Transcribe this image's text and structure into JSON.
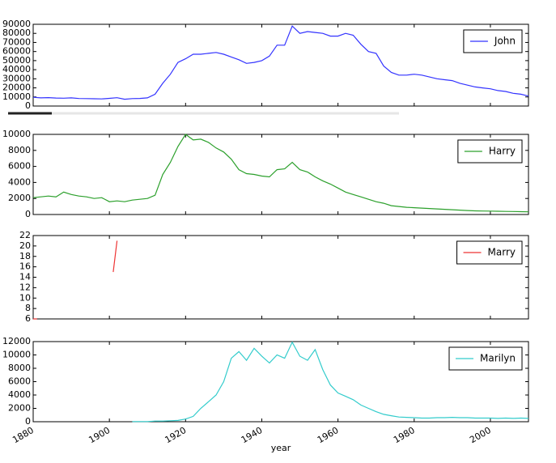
{
  "chart_data": [
    {
      "type": "line",
      "xlim": [
        1880,
        2010
      ],
      "ylim": [
        0,
        90000
      ],
      "yticks": [
        0,
        10000,
        20000,
        30000,
        40000,
        50000,
        60000,
        70000,
        80000,
        90000
      ],
      "legend": "upper right",
      "x": [
        1880,
        1882,
        1884,
        1886,
        1888,
        1890,
        1892,
        1894,
        1896,
        1898,
        1900,
        1902,
        1904,
        1906,
        1908,
        1910,
        1912,
        1914,
        1916,
        1918,
        1920,
        1922,
        1924,
        1926,
        1928,
        1930,
        1932,
        1934,
        1936,
        1938,
        1940,
        1942,
        1944,
        1946,
        1948,
        1950,
        1952,
        1954,
        1956,
        1958,
        1960,
        1962,
        1964,
        1966,
        1968,
        1970,
        1972,
        1974,
        1976,
        1978,
        1980,
        1982,
        1984,
        1986,
        1988,
        1990,
        1992,
        1994,
        1996,
        1998,
        2000,
        2002,
        2004,
        2006,
        2008,
        2010
      ],
      "series": [
        {
          "name": "John",
          "color": "#3333ff",
          "values": [
            9600,
            9000,
            9300,
            8800,
            8600,
            9000,
            8300,
            8200,
            8000,
            7800,
            8500,
            9200,
            7500,
            8200,
            8400,
            9000,
            13000,
            25000,
            35000,
            48000,
            52000,
            57000,
            57000,
            58000,
            59000,
            57000,
            54000,
            51000,
            47000,
            48000,
            50000,
            55000,
            67000,
            67000,
            88000,
            80000,
            82000,
            81000,
            80000,
            77000,
            77000,
            80000,
            78000,
            68000,
            60000,
            58000,
            44000,
            37000,
            34000,
            34000,
            35000,
            34000,
            32000,
            30000,
            29000,
            28000,
            25000,
            23000,
            21000,
            20000,
            19000,
            17000,
            16000,
            14000,
            13000,
            11000
          ]
        }
      ]
    },
    {
      "type": "line",
      "xlim": [
        1880,
        2010
      ],
      "ylim": [
        0,
        10000
      ],
      "yticks": [
        0,
        2000,
        4000,
        6000,
        8000,
        10000
      ],
      "legend": "upper right",
      "x": [
        1880,
        1882,
        1884,
        1886,
        1888,
        1890,
        1892,
        1894,
        1896,
        1898,
        1900,
        1902,
        1904,
        1906,
        1908,
        1910,
        1912,
        1914,
        1916,
        1918,
        1920,
        1922,
        1924,
        1926,
        1928,
        1930,
        1932,
        1934,
        1936,
        1938,
        1940,
        1942,
        1944,
        1946,
        1948,
        1950,
        1952,
        1954,
        1956,
        1958,
        1960,
        1962,
        1964,
        1966,
        1968,
        1970,
        1972,
        1974,
        1976,
        1978,
        1980,
        1982,
        1984,
        1986,
        1988,
        1990,
        1992,
        1994,
        1996,
        1998,
        2000,
        2002,
        2004,
        2006,
        2008,
        2010
      ],
      "series": [
        {
          "name": "Harry",
          "color": "#2ca02c",
          "values": [
            2100,
            2200,
            2300,
            2200,
            2800,
            2500,
            2300,
            2200,
            2000,
            2100,
            1600,
            1700,
            1600,
            1800,
            1900,
            2000,
            2400,
            5000,
            6500,
            8500,
            10000,
            9300,
            9400,
            9000,
            8300,
            7800,
            6900,
            5600,
            5100,
            5000,
            4800,
            4700,
            5600,
            5700,
            6500,
            5600,
            5300,
            4700,
            4200,
            3800,
            3300,
            2800,
            2500,
            2200,
            1900,
            1600,
            1400,
            1100,
            1000,
            900,
            850,
            800,
            750,
            700,
            650,
            600,
            550,
            500,
            450,
            430,
            420,
            400,
            380,
            370,
            350,
            330
          ]
        }
      ]
    },
    {
      "type": "line",
      "xlim": [
        1880,
        2010
      ],
      "ylim": [
        6,
        22
      ],
      "yticks": [
        6,
        8,
        10,
        12,
        14,
        16,
        18,
        20,
        22
      ],
      "legend": "upper right",
      "x": [
        1880,
        1881,
        1882,
        1901,
        1902
      ],
      "series": [
        {
          "name": "Marry",
          "color": "#ee3333",
          "values": [
            6,
            6,
            null,
            15,
            21
          ]
        }
      ]
    },
    {
      "type": "line",
      "xlim": [
        1880,
        2010
      ],
      "ylim": [
        0,
        12000
      ],
      "yticks": [
        0,
        2000,
        4000,
        6000,
        8000,
        10000,
        12000
      ],
      "legend": "upper right",
      "xticks": [
        1880,
        1900,
        1920,
        1940,
        1960,
        1980,
        2000
      ],
      "xlabel": "year",
      "x": [
        1880,
        1882,
        1884,
        1886,
        1888,
        1890,
        1892,
        1894,
        1896,
        1898,
        1900,
        1902,
        1904,
        1906,
        1908,
        1910,
        1912,
        1914,
        1916,
        1918,
        1920,
        1922,
        1924,
        1926,
        1928,
        1930,
        1932,
        1934,
        1936,
        1938,
        1940,
        1942,
        1944,
        1946,
        1948,
        1950,
        1952,
        1954,
        1956,
        1958,
        1960,
        1962,
        1964,
        1966,
        1968,
        1970,
        1972,
        1974,
        1976,
        1978,
        1980,
        1982,
        1984,
        1986,
        1988,
        1990,
        1992,
        1994,
        1996,
        1998,
        2000,
        2002,
        2004,
        2006,
        2008,
        2010
      ],
      "series": [
        {
          "name": "Marilyn",
          "color": "#33cccc",
          "values": [
            null,
            null,
            null,
            null,
            null,
            null,
            null,
            null,
            null,
            null,
            null,
            null,
            null,
            20,
            30,
            20,
            100,
            100,
            150,
            200,
            400,
            800,
            2000,
            3000,
            4000,
            6000,
            9500,
            10500,
            9200,
            11000,
            9800,
            8800,
            10000,
            9500,
            11900,
            9800,
            9200,
            10800,
            7800,
            5500,
            4300,
            3800,
            3300,
            2500,
            2000,
            1500,
            1100,
            900,
            700,
            650,
            600,
            550,
            550,
            600,
            600,
            650,
            600,
            600,
            550,
            550,
            550,
            500,
            550,
            500,
            550,
            500
          ]
        }
      ]
    }
  ]
}
